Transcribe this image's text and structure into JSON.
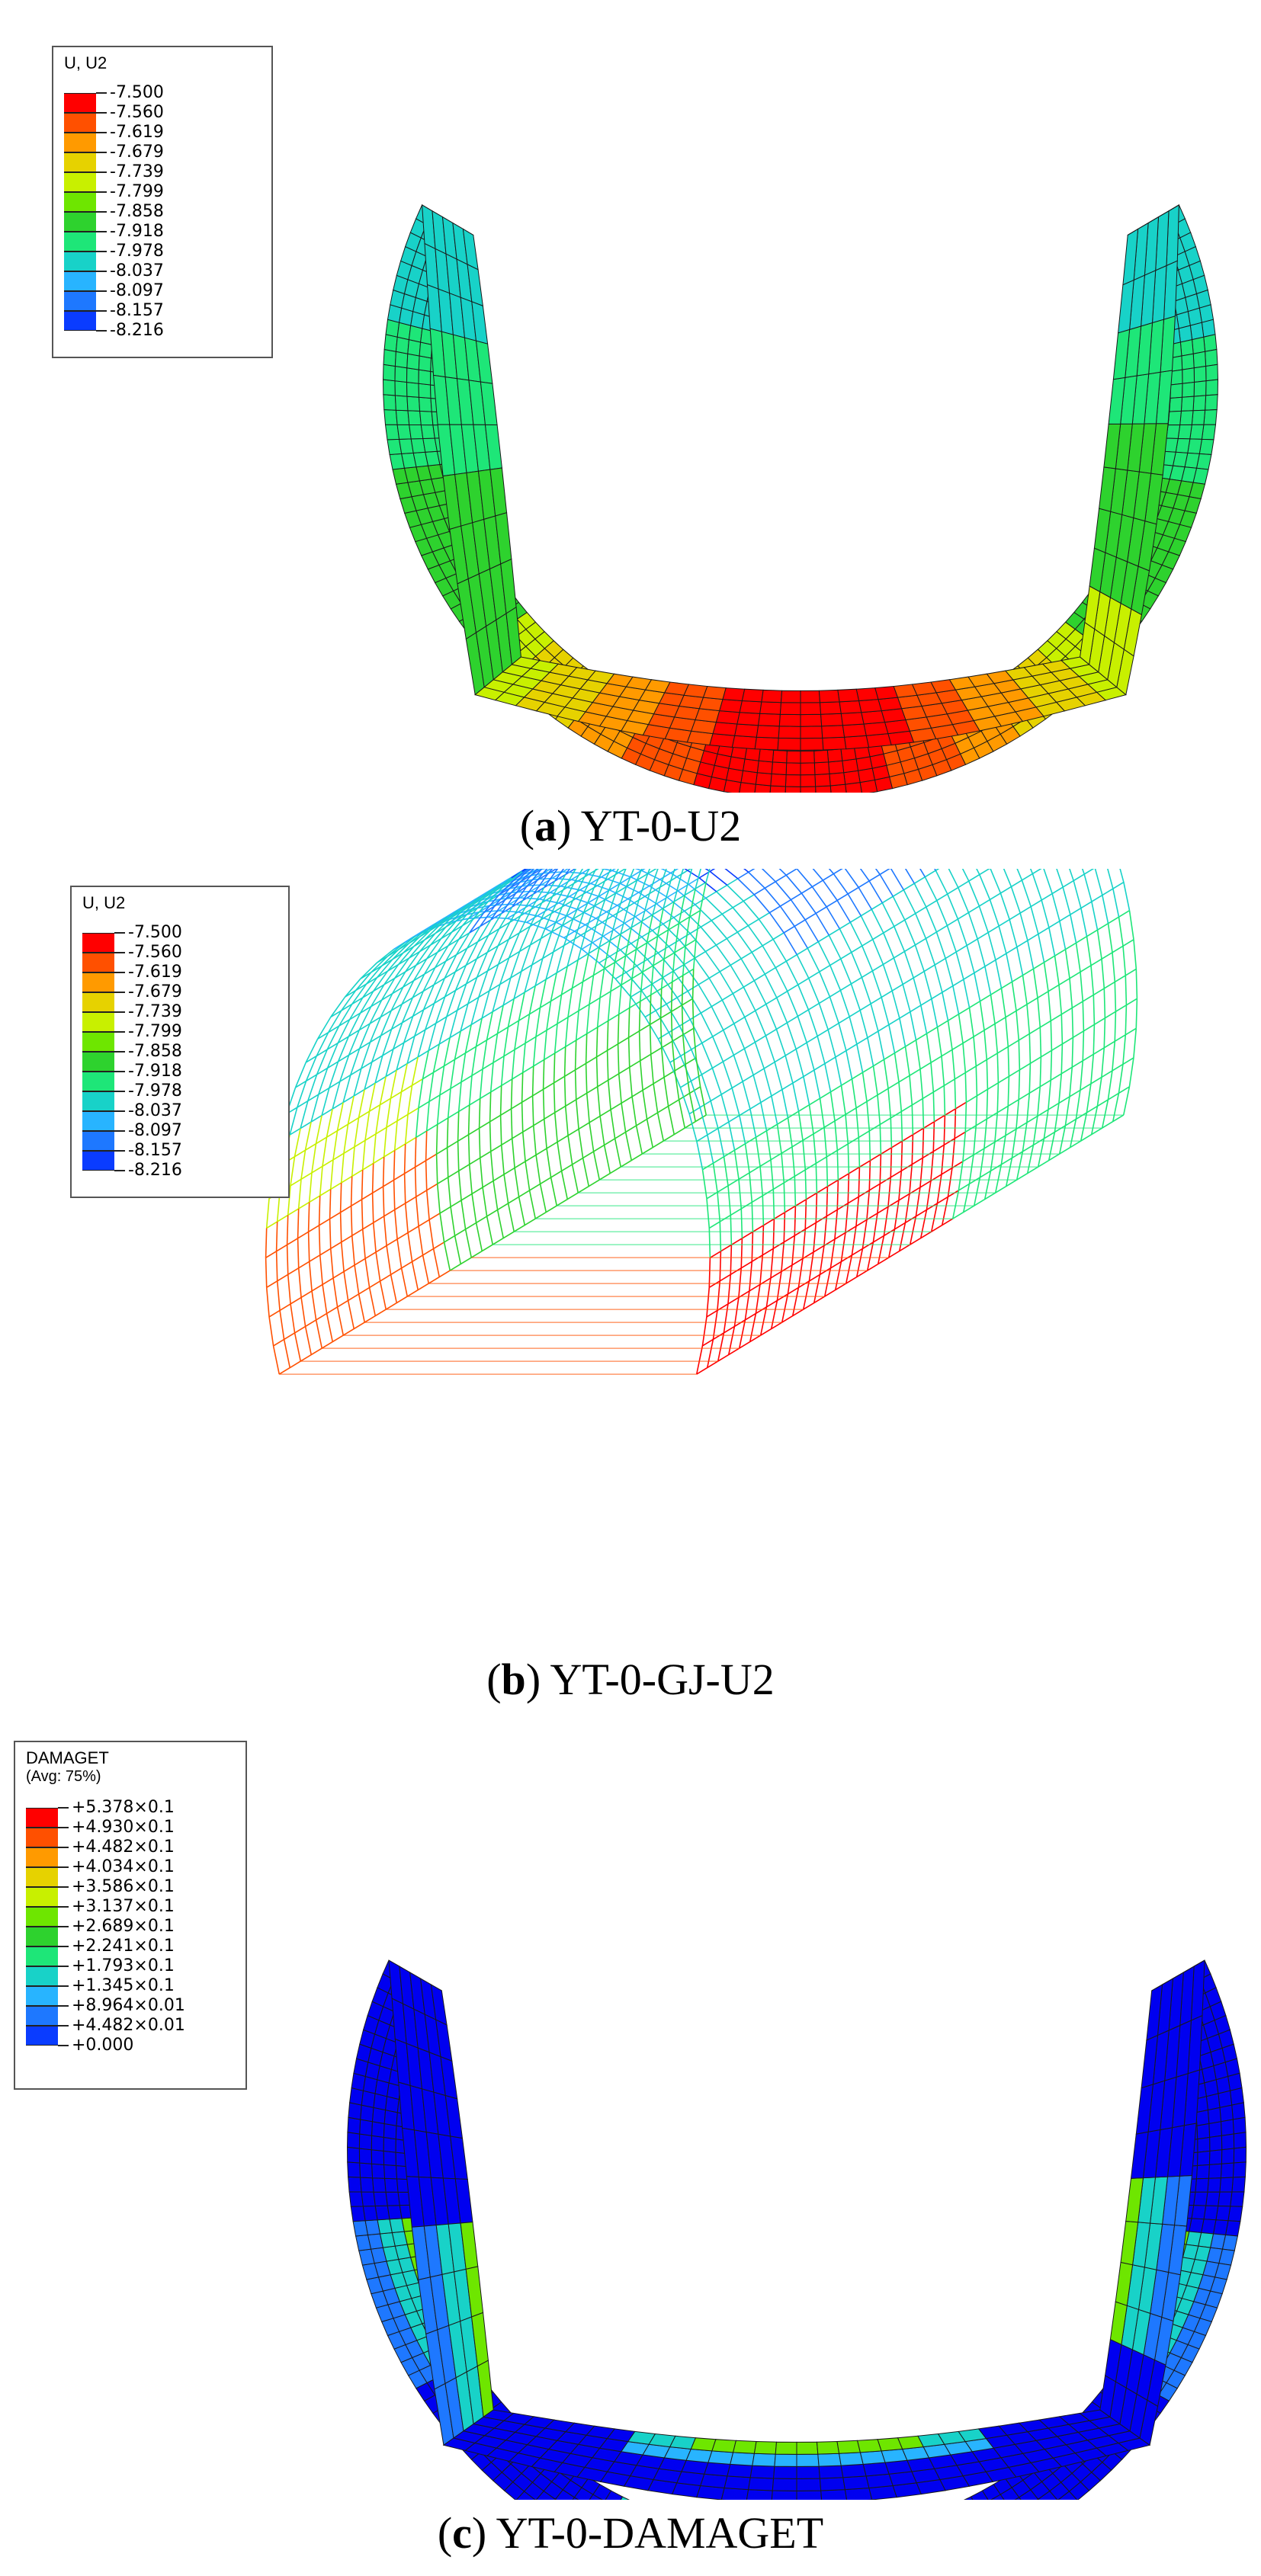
{
  "panels": [
    {
      "id": "a",
      "legend": {
        "title": "U, U2",
        "subtitle": "",
        "values": [
          "-7.500",
          "-7.560",
          "-7.619",
          "-7.679",
          "-7.739",
          "-7.799",
          "-7.858",
          "-7.918",
          "-7.978",
          "-8.037",
          "-8.097",
          "-8.157",
          "-8.216"
        ]
      },
      "caption_letter": "a",
      "caption_text": "YT-0-U2"
    },
    {
      "id": "b",
      "legend": {
        "title": "U, U2",
        "subtitle": "",
        "values": [
          "-7.500",
          "-7.560",
          "-7.619",
          "-7.679",
          "-7.739",
          "-7.799",
          "-7.858",
          "-7.918",
          "-7.978",
          "-8.037",
          "-8.097",
          "-8.157",
          "-8.216"
        ]
      },
      "caption_letter": "b",
      "caption_text": "YT-0-GJ-U2"
    },
    {
      "id": "c",
      "legend": {
        "title": "DAMAGET",
        "subtitle": "(Avg: 75%)",
        "values": [
          "+5.378×0.1",
          "+4.930×0.1",
          "+4.482×0.1",
          "+4.034×0.1",
          "+3.586×0.1",
          "+3.137×0.1",
          "+2.689×0.1",
          "+2.241×0.1",
          "+1.793×0.1",
          "+1.345×0.1",
          "+8.964×0.01",
          "+4.482×0.01",
          "+0.000"
        ]
      },
      "caption_letter": "c",
      "caption_text": "YT-0-DAMAGET"
    }
  ],
  "colors": {
    "scale": [
      "#ff0000",
      "#ff5000",
      "#ff9a00",
      "#e6d200",
      "#c8f000",
      "#6ee600",
      "#2ed22e",
      "#1ee678",
      "#18d2c8",
      "#28b4ff",
      "#1e78ff",
      "#0a3cff",
      "#0000f0"
    ],
    "mesh_line": "#1a1a1a",
    "caption": "#000000"
  }
}
